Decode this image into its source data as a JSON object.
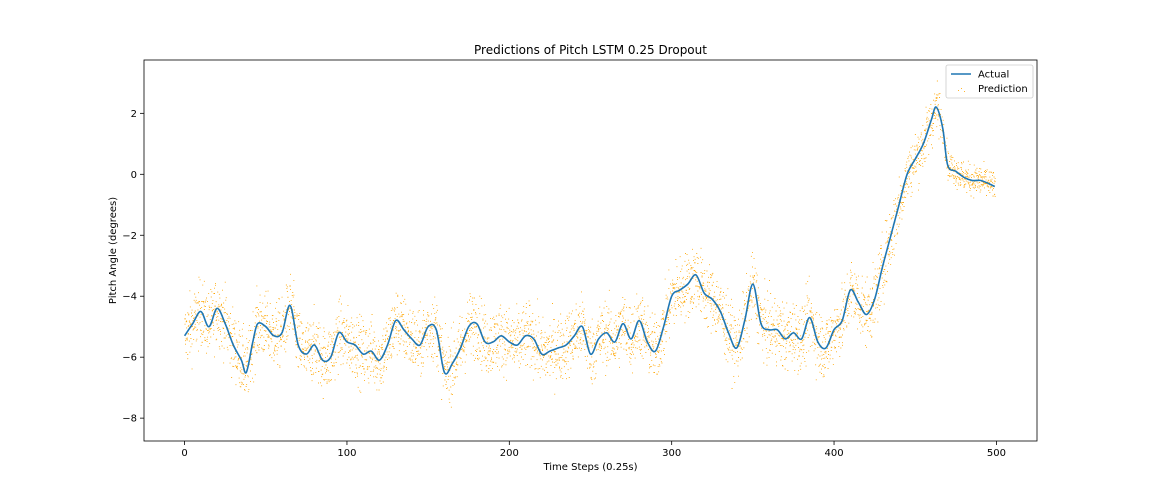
{
  "chart_data": {
    "type": "line",
    "title": "Predictions of Pitch LSTM 0.25 Dropout",
    "xlabel": "Time Steps (0.25s)",
    "ylabel": "Pitch Angle (degrees)",
    "xlim": [
      -25,
      525
    ],
    "ylim": [
      -8.75,
      3.75
    ],
    "xticks": [
      0,
      100,
      200,
      300,
      400,
      500
    ],
    "yticks": [
      -8,
      -6,
      -4,
      -2,
      0,
      2
    ],
    "grid": false,
    "legend": "top-right",
    "series": [
      {
        "name": "Actual",
        "style": "line",
        "color": "#1f77b4",
        "x": [
          0,
          5,
          10,
          15,
          20,
          25,
          30,
          35,
          38,
          42,
          45,
          50,
          55,
          60,
          65,
          70,
          75,
          80,
          85,
          90,
          95,
          100,
          105,
          110,
          115,
          120,
          125,
          130,
          135,
          140,
          145,
          150,
          155,
          160,
          165,
          170,
          175,
          180,
          185,
          190,
          195,
          200,
          205,
          210,
          215,
          220,
          225,
          230,
          235,
          240,
          245,
          250,
          255,
          260,
          265,
          270,
          275,
          280,
          285,
          290,
          295,
          300,
          305,
          310,
          315,
          320,
          325,
          330,
          335,
          340,
          345,
          350,
          355,
          360,
          365,
          370,
          375,
          380,
          385,
          390,
          395,
          400,
          405,
          410,
          415,
          420,
          425,
          430,
          435,
          440,
          445,
          450,
          455,
          460,
          463,
          467,
          470,
          475,
          480,
          485,
          490,
          495,
          499
        ],
        "y": [
          -5.3,
          -4.9,
          -4.5,
          -5.0,
          -4.4,
          -4.9,
          -5.6,
          -6.1,
          -6.5,
          -5.5,
          -4.9,
          -5.0,
          -5.3,
          -5.2,
          -4.3,
          -5.6,
          -5.9,
          -5.6,
          -6.1,
          -6.0,
          -5.2,
          -5.5,
          -5.6,
          -5.9,
          -5.8,
          -6.1,
          -5.6,
          -4.8,
          -5.1,
          -5.4,
          -5.6,
          -5.0,
          -5.1,
          -6.5,
          -6.2,
          -5.7,
          -5.0,
          -4.9,
          -5.5,
          -5.5,
          -5.3,
          -5.5,
          -5.6,
          -5.3,
          -5.4,
          -5.9,
          -5.8,
          -5.7,
          -5.6,
          -5.3,
          -5.0,
          -5.9,
          -5.4,
          -5.2,
          -5.5,
          -4.9,
          -5.4,
          -4.8,
          -5.5,
          -5.8,
          -5.0,
          -4.0,
          -3.8,
          -3.6,
          -3.3,
          -3.9,
          -4.1,
          -4.5,
          -5.2,
          -5.7,
          -4.8,
          -3.6,
          -4.9,
          -5.1,
          -5.1,
          -5.4,
          -5.2,
          -5.4,
          -4.7,
          -5.5,
          -5.7,
          -5.1,
          -4.8,
          -3.8,
          -4.2,
          -4.6,
          -4.1,
          -3.0,
          -2.0,
          -1.0,
          0.0,
          0.5,
          1.0,
          1.8,
          2.2,
          1.5,
          0.3,
          0.1,
          -0.1,
          -0.2,
          -0.2,
          -0.3,
          -0.4
        ]
      },
      {
        "name": "Prediction",
        "style": "scatter",
        "color": "#ffa500",
        "spread": 0.55
      }
    ]
  }
}
